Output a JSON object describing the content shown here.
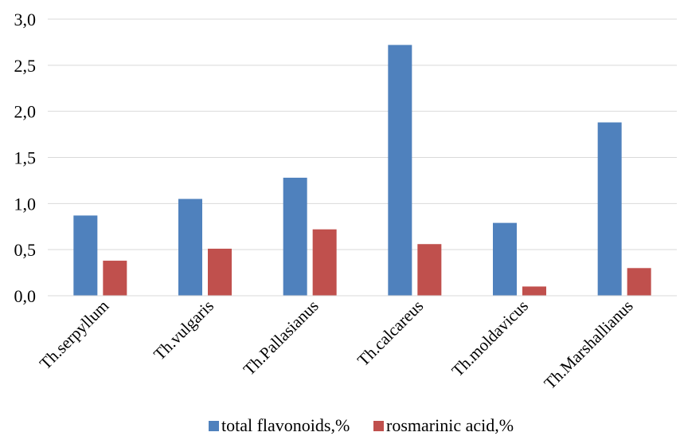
{
  "chart_data": {
    "type": "bar",
    "categories": [
      "Th.serpyllum",
      "Th.vulgaris",
      "Th.Pallasianus",
      "Th.calcareus",
      "Th.moldavicus",
      "Th.Marshallianus"
    ],
    "series": [
      {
        "name": "total flavonoids,%",
        "color": "#4f81bd",
        "values": [
          0.87,
          1.05,
          1.28,
          2.72,
          0.79,
          1.88
        ]
      },
      {
        "name": "rosmarinic acid,%",
        "color": "#c0504d",
        "values": [
          0.38,
          0.51,
          0.72,
          0.56,
          0.1,
          0.3
        ]
      }
    ],
    "ylim": [
      0,
      3.0
    ],
    "yticks": [
      "0,0",
      "0,5",
      "1,0",
      "1,5",
      "2,0",
      "2,5",
      "3,0"
    ],
    "ytick_values": [
      0,
      0.5,
      1.0,
      1.5,
      2.0,
      2.5,
      3.0
    ],
    "grid": true,
    "legend_position": "bottom"
  }
}
